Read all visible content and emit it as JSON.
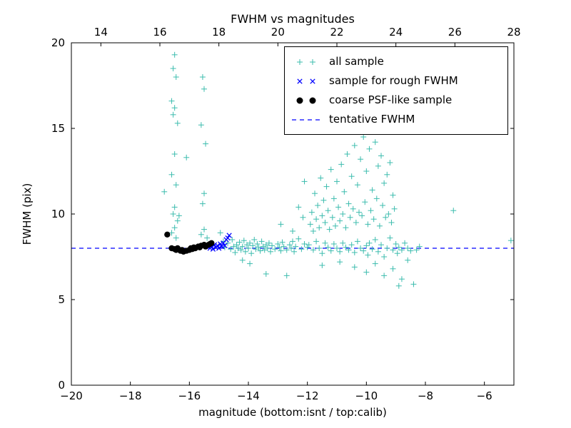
{
  "chart_data": {
    "type": "scatter",
    "title": "FWHM vs magnitudes",
    "xlabel": "magnitude (bottom:isnt / top:calib)",
    "ylabel": "FWHM (pix)",
    "xlim": [
      -20,
      -5
    ],
    "ylim": [
      0,
      20
    ],
    "x_top_offset": 33,
    "grid": false,
    "legend_position": "upper right",
    "xticks_bottom": {
      "values": [
        -20,
        -18,
        -16,
        -14,
        -12,
        -10,
        -8,
        -6
      ],
      "labels": [
        "−20",
        "−18",
        "−16",
        "−14",
        "−12",
        "−10",
        "−8",
        "−6"
      ]
    },
    "xticks_top": {
      "values": [
        14,
        16,
        18,
        20,
        22,
        24,
        26,
        28
      ],
      "labels": [
        "14",
        "16",
        "18",
        "20",
        "22",
        "24",
        "26",
        "28"
      ]
    },
    "yticks": {
      "values": [
        0,
        5,
        10,
        15,
        20
      ],
      "labels": [
        "0",
        "5",
        "10",
        "15",
        "20"
      ]
    },
    "series": [
      {
        "label": "all sample",
        "marker": "plus",
        "color": "#3cbcae",
        "points": [
          [
            -16.5,
            19.3
          ],
          [
            -16.55,
            18.5
          ],
          [
            -16.45,
            18.0
          ],
          [
            -16.6,
            16.6
          ],
          [
            -16.5,
            16.2
          ],
          [
            -16.55,
            15.8
          ],
          [
            -16.4,
            15.3
          ],
          [
            -16.5,
            13.5
          ],
          [
            -16.6,
            12.3
          ],
          [
            -16.45,
            11.7
          ],
          [
            -16.85,
            11.3
          ],
          [
            -16.5,
            10.4
          ],
          [
            -16.55,
            10.0
          ],
          [
            -16.4,
            9.6
          ],
          [
            -16.5,
            9.2
          ],
          [
            -16.6,
            8.9
          ],
          [
            -16.45,
            8.6
          ],
          [
            -16.35,
            9.9
          ],
          [
            -15.55,
            18.0
          ],
          [
            -15.5,
            17.3
          ],
          [
            -15.6,
            15.2
          ],
          [
            -15.45,
            14.1
          ],
          [
            -16.1,
            13.3
          ],
          [
            -15.5,
            11.2
          ],
          [
            -15.55,
            10.6
          ],
          [
            -15.5,
            9.1
          ],
          [
            -15.6,
            8.8
          ],
          [
            -15.4,
            8.6
          ],
          [
            -14.95,
            8.9
          ],
          [
            -14.85,
            8.4
          ],
          [
            -14.8,
            8.05
          ],
          [
            -14.7,
            8.3
          ],
          [
            -14.6,
            7.95
          ],
          [
            -14.55,
            8.5
          ],
          [
            -14.5,
            8.1
          ],
          [
            -14.45,
            7.75
          ],
          [
            -14.4,
            8.2
          ],
          [
            -14.35,
            8.0
          ],
          [
            -14.3,
            8.35
          ],
          [
            -14.25,
            7.9
          ],
          [
            -14.2,
            8.1
          ],
          [
            -14.15,
            8.45
          ],
          [
            -14.1,
            7.8
          ],
          [
            -14.05,
            8.2
          ],
          [
            -14.0,
            8.0
          ],
          [
            -13.95,
            8.3
          ],
          [
            -13.9,
            7.7
          ],
          [
            -13.85,
            8.15
          ],
          [
            -13.8,
            8.5
          ],
          [
            -13.75,
            7.95
          ],
          [
            -13.7,
            8.25
          ],
          [
            -13.65,
            8.05
          ],
          [
            -13.6,
            7.85
          ],
          [
            -13.55,
            8.4
          ],
          [
            -13.5,
            8.1
          ],
          [
            -13.45,
            7.9
          ],
          [
            -13.4,
            8.2
          ],
          [
            -13.35,
            8.0
          ],
          [
            -13.3,
            8.3
          ],
          [
            -13.25,
            7.8
          ],
          [
            -13.2,
            8.15
          ],
          [
            -13.1,
            7.95
          ],
          [
            -13.0,
            8.25
          ],
          [
            -12.95,
            8.05
          ],
          [
            -12.9,
            7.85
          ],
          [
            -12.85,
            8.35
          ],
          [
            -12.8,
            8.1
          ],
          [
            -12.7,
            7.9
          ],
          [
            -12.6,
            8.2
          ],
          [
            -12.55,
            8.0
          ],
          [
            -12.5,
            8.4
          ],
          [
            -12.45,
            7.8
          ],
          [
            -12.4,
            8.1
          ],
          [
            -12.3,
            8.55
          ],
          [
            -12.2,
            7.95
          ],
          [
            -12.1,
            8.25
          ],
          [
            -12.0,
            8.05
          ],
          [
            -14.2,
            7.3
          ],
          [
            -13.95,
            7.1
          ],
          [
            -13.4,
            6.5
          ],
          [
            -12.7,
            6.4
          ],
          [
            -12.9,
            9.4
          ],
          [
            -12.5,
            9.0
          ],
          [
            -12.15,
            9.8
          ],
          [
            -12.1,
            11.9
          ],
          [
            -12.3,
            10.4
          ],
          [
            -11.9,
            9.4
          ],
          [
            -11.85,
            10.1
          ],
          [
            -11.8,
            9.0
          ],
          [
            -11.75,
            11.2
          ],
          [
            -11.7,
            9.7
          ],
          [
            -11.65,
            10.5
          ],
          [
            -11.6,
            9.2
          ],
          [
            -11.55,
            12.1
          ],
          [
            -11.5,
            9.9
          ],
          [
            -11.45,
            10.8
          ],
          [
            -11.4,
            9.5
          ],
          [
            -11.35,
            11.6
          ],
          [
            -11.3,
            10.2
          ],
          [
            -11.25,
            9.1
          ],
          [
            -11.2,
            12.6
          ],
          [
            -11.15,
            9.8
          ],
          [
            -11.1,
            10.9
          ],
          [
            -11.05,
            9.3
          ],
          [
            -11.0,
            11.9
          ],
          [
            -10.95,
            10.4
          ],
          [
            -10.9,
            9.6
          ],
          [
            -10.85,
            12.9
          ],
          [
            -10.8,
            10.0
          ],
          [
            -10.75,
            11.3
          ],
          [
            -10.7,
            9.2
          ],
          [
            -10.65,
            13.5
          ],
          [
            -10.6,
            10.6
          ],
          [
            -10.55,
            9.8
          ],
          [
            -10.5,
            12.2
          ],
          [
            -10.45,
            10.3
          ],
          [
            -10.4,
            14.0
          ],
          [
            -10.35,
            9.5
          ],
          [
            -10.3,
            11.7
          ],
          [
            -10.25,
            10.1
          ],
          [
            -10.2,
            13.2
          ],
          [
            -10.15,
            9.9
          ],
          [
            -10.1,
            14.5
          ],
          [
            -10.05,
            10.7
          ],
          [
            -10.0,
            12.5
          ],
          [
            -9.95,
            9.4
          ],
          [
            -9.9,
            13.8
          ],
          [
            -9.85,
            10.2
          ],
          [
            -9.8,
            11.4
          ],
          [
            -9.75,
            9.7
          ],
          [
            -9.7,
            14.2
          ],
          [
            -9.65,
            10.9
          ],
          [
            -9.6,
            12.8
          ],
          [
            -9.55,
            9.3
          ],
          [
            -9.5,
            13.4
          ],
          [
            -9.45,
            10.5
          ],
          [
            -9.4,
            11.8
          ],
          [
            -9.35,
            9.8
          ],
          [
            -9.3,
            12.3
          ],
          [
            -9.25,
            10.0
          ],
          [
            -9.2,
            13.0
          ],
          [
            -9.15,
            9.5
          ],
          [
            -9.1,
            11.1
          ],
          [
            -9.05,
            10.3
          ],
          [
            -11.95,
            8.2
          ],
          [
            -11.8,
            7.9
          ],
          [
            -11.7,
            8.4
          ],
          [
            -11.6,
            8.0
          ],
          [
            -11.5,
            7.7
          ],
          [
            -11.4,
            8.3
          ],
          [
            -11.3,
            8.05
          ],
          [
            -11.2,
            7.85
          ],
          [
            -11.1,
            8.25
          ],
          [
            -11.0,
            8.0
          ],
          [
            -10.9,
            7.8
          ],
          [
            -10.8,
            8.3
          ],
          [
            -10.7,
            8.05
          ],
          [
            -10.6,
            7.9
          ],
          [
            -10.5,
            8.2
          ],
          [
            -10.4,
            7.75
          ],
          [
            -10.3,
            8.4
          ],
          [
            -10.2,
            8.0
          ],
          [
            -10.1,
            7.85
          ],
          [
            -10.0,
            8.15
          ],
          [
            -9.95,
            7.6
          ],
          [
            -9.9,
            8.3
          ],
          [
            -9.8,
            7.95
          ],
          [
            -9.7,
            8.5
          ],
          [
            -9.6,
            7.8
          ],
          [
            -9.5,
            8.2
          ],
          [
            -9.4,
            7.5
          ],
          [
            -9.3,
            8.0
          ],
          [
            -9.2,
            8.6
          ],
          [
            -9.1,
            7.9
          ],
          [
            -9.0,
            8.25
          ],
          [
            -8.95,
            7.7
          ],
          [
            -8.9,
            8.05
          ],
          [
            -8.8,
            7.9
          ],
          [
            -8.7,
            8.3
          ],
          [
            -8.6,
            8.0
          ],
          [
            -8.5,
            7.85
          ],
          [
            -10.9,
            7.2
          ],
          [
            -10.4,
            6.9
          ],
          [
            -10.0,
            6.6
          ],
          [
            -9.7,
            7.1
          ],
          [
            -9.4,
            6.4
          ],
          [
            -9.1,
            6.8
          ],
          [
            -8.8,
            6.2
          ],
          [
            -8.6,
            7.3
          ],
          [
            -11.5,
            7.0
          ],
          [
            -8.4,
            5.9
          ],
          [
            -8.9,
            5.8
          ],
          [
            -8.3,
            7.9
          ],
          [
            -8.2,
            8.1
          ],
          [
            -7.05,
            10.2
          ],
          [
            -5.1,
            8.45
          ]
        ]
      },
      {
        "label": "sample for rough FWHM",
        "marker": "x",
        "color": "#0000ff",
        "points": [
          [
            -15.3,
            8.0
          ],
          [
            -15.25,
            8.1
          ],
          [
            -15.2,
            7.95
          ],
          [
            -15.15,
            8.2
          ],
          [
            -15.1,
            8.05
          ],
          [
            -15.05,
            8.15
          ],
          [
            -15.0,
            8.0
          ],
          [
            -14.95,
            8.25
          ],
          [
            -14.9,
            8.1
          ],
          [
            -14.85,
            8.3
          ],
          [
            -14.8,
            8.15
          ],
          [
            -14.75,
            8.5
          ],
          [
            -14.7,
            8.6
          ],
          [
            -14.65,
            8.75
          ]
        ]
      },
      {
        "label": "coarse PSF-like sample",
        "marker": "dot",
        "color": "#000000",
        "points": [
          [
            -16.75,
            8.8
          ],
          [
            -16.6,
            8.0
          ],
          [
            -16.5,
            7.95
          ],
          [
            -16.45,
            7.9
          ],
          [
            -16.4,
            8.0
          ],
          [
            -16.3,
            7.85
          ],
          [
            -16.25,
            7.9
          ],
          [
            -16.2,
            7.8
          ],
          [
            -16.1,
            7.85
          ],
          [
            -16.0,
            7.9
          ],
          [
            -15.95,
            8.0
          ],
          [
            -15.9,
            7.95
          ],
          [
            -15.85,
            8.05
          ],
          [
            -15.8,
            8.0
          ],
          [
            -15.7,
            8.1
          ],
          [
            -15.65,
            8.05
          ],
          [
            -15.6,
            8.15
          ],
          [
            -15.5,
            8.2
          ],
          [
            -15.45,
            8.1
          ],
          [
            -15.35,
            8.2
          ],
          [
            -15.3,
            8.25
          ],
          [
            -15.25,
            8.3
          ]
        ]
      }
    ],
    "lines": [
      {
        "label": "tentative FWHM",
        "style": "dashed",
        "color": "#0000ff",
        "y": 8
      }
    ]
  }
}
